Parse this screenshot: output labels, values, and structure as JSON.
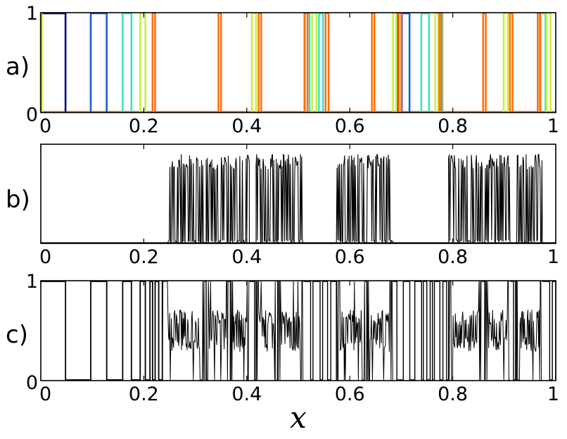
{
  "figure": {
    "xlabel": "x"
  },
  "chart_data": [
    {
      "type": "line",
      "panel_label": "a)",
      "xlim": [
        0,
        1
      ],
      "ylim": [
        0,
        1
      ],
      "xticks": [
        "0",
        "0.2",
        "0.4",
        "0.6",
        "0.8",
        "1"
      ],
      "yticks": [
        "0",
        "1"
      ],
      "series": [
        {
          "color": "#000080",
          "pulses": [
            [
              0.0,
              0.048
            ],
            [
              0.694,
              0.701
            ]
          ]
        },
        {
          "color": "#1f5bd8",
          "pulses": [
            [
              0.097,
              0.128
            ],
            [
              0.701,
              0.716
            ]
          ]
        },
        {
          "color": "#3fe0c8",
          "pulses": [
            [
              0.159,
              0.176
            ],
            [
              0.513,
              0.522
            ],
            [
              0.54,
              0.548
            ],
            [
              0.739,
              0.754
            ],
            [
              0.775,
              0.78
            ],
            [
              0.969,
              0.98
            ]
          ]
        },
        {
          "color": "#c8f040",
          "pulses": [
            [
              0.0,
              0.002
            ],
            [
              0.193,
              0.203
            ],
            [
              0.41,
              0.418
            ],
            [
              0.527,
              0.535
            ],
            [
              0.684,
              0.69
            ],
            [
              0.766,
              0.772
            ],
            [
              0.899,
              0.907
            ],
            [
              0.982,
              0.99
            ]
          ]
        },
        {
          "color": "#ff7010",
          "pulses": [
            [
              0.217,
              0.222
            ],
            [
              0.345,
              0.35
            ],
            [
              0.423,
              0.428
            ],
            [
              0.512,
              0.518
            ],
            [
              0.553,
              0.559
            ],
            [
              0.643,
              0.648
            ],
            [
              0.695,
              0.7
            ],
            [
              0.774,
              0.778
            ],
            [
              0.859,
              0.864
            ],
            [
              0.911,
              0.916
            ],
            [
              0.965,
              0.97
            ]
          ]
        }
      ]
    },
    {
      "type": "line",
      "panel_label": "b)",
      "xlim": [
        0,
        1
      ],
      "xticks": [
        "0",
        "0.2",
        "0.4",
        "0.6",
        "0.8",
        "1"
      ],
      "yticks": [],
      "bursts": [
        [
          0.247,
          0.318
        ],
        [
          0.321,
          0.365
        ],
        [
          0.368,
          0.405
        ],
        [
          0.418,
          0.458
        ],
        [
          0.46,
          0.51
        ],
        [
          0.574,
          0.63
        ],
        [
          0.633,
          0.684
        ],
        [
          0.792,
          0.858
        ],
        [
          0.862,
          0.912
        ],
        [
          0.924,
          0.974
        ]
      ]
    },
    {
      "type": "line",
      "panel_label": "c)",
      "xlim": [
        0,
        1
      ],
      "ylim": [
        0,
        1
      ],
      "xticks": [
        "0",
        "0.2",
        "0.4",
        "0.6",
        "0.8",
        "1"
      ],
      "yticks": [
        "0",
        "1"
      ],
      "switch_points": [
        0.048,
        0.097,
        0.128,
        0.159,
        0.176,
        0.193,
        0.203,
        0.212,
        0.217,
        0.222,
        0.229,
        0.236
      ],
      "dense_regions": [
        [
          0.236,
          0.318
        ],
        [
          0.321,
          0.365
        ],
        [
          0.368,
          0.405
        ],
        [
          0.418,
          0.458
        ],
        [
          0.46,
          0.51
        ],
        [
          0.574,
          0.63
        ],
        [
          0.633,
          0.684
        ],
        [
          0.792,
          0.858
        ],
        [
          0.862,
          0.912
        ],
        [
          0.924,
          0.974
        ]
      ],
      "sparse_regions": [
        [
          0.318,
          0.321
        ],
        [
          0.365,
          0.368
        ],
        [
          0.405,
          0.418
        ],
        [
          0.458,
          0.46
        ],
        [
          0.51,
          0.574
        ],
        [
          0.63,
          0.633
        ],
        [
          0.684,
          0.792
        ],
        [
          0.858,
          0.862
        ],
        [
          0.912,
          0.924
        ],
        [
          0.974,
          1.0
        ]
      ]
    }
  ]
}
